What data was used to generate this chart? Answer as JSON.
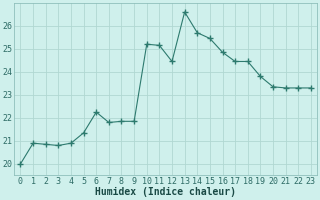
{
  "x": [
    0,
    1,
    2,
    3,
    4,
    5,
    6,
    7,
    8,
    9,
    10,
    11,
    12,
    13,
    14,
    15,
    16,
    17,
    18,
    19,
    20,
    21,
    22,
    23
  ],
  "y": [
    20.0,
    20.9,
    20.85,
    20.8,
    20.9,
    21.35,
    22.25,
    21.8,
    21.85,
    21.85,
    25.2,
    25.15,
    24.45,
    26.6,
    25.7,
    25.45,
    24.85,
    24.45,
    24.45,
    23.8,
    23.35,
    23.3,
    23.3,
    23.3
  ],
  "line_color": "#2d7a6e",
  "marker": "+",
  "marker_size": 4,
  "bg_color": "#cff0ec",
  "grid_color": "#b0d8d2",
  "xlabel": "Humidex (Indice chaleur)",
  "xlabel_fontsize": 7,
  "tick_fontsize": 6,
  "ylim": [
    19.5,
    27.0
  ],
  "yticks": [
    20,
    21,
    22,
    23,
    24,
    25,
    26
  ],
  "xlim": [
    -0.5,
    23.5
  ],
  "xticks": [
    0,
    1,
    2,
    3,
    4,
    5,
    6,
    7,
    8,
    9,
    10,
    11,
    12,
    13,
    14,
    15,
    16,
    17,
    18,
    19,
    20,
    21,
    22,
    23
  ],
  "spine_color": "#8fbfbb"
}
